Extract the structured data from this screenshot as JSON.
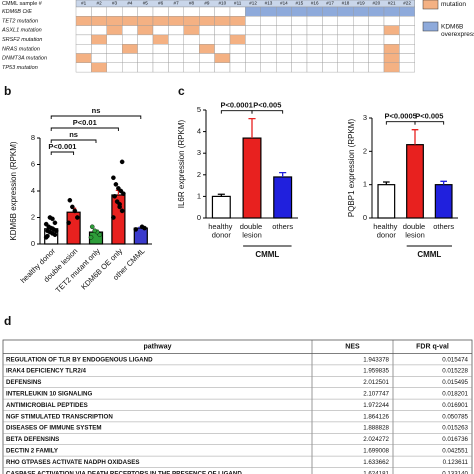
{
  "heatmap": {
    "header_label": "CMML sample #",
    "columns": [
      "#1",
      "#2",
      "#3",
      "#4",
      "#5",
      "#6",
      "#7",
      "#8",
      "#9",
      "#10",
      "#11",
      "#12",
      "#13",
      "#14",
      "#15",
      "#16",
      "#17",
      "#18",
      "#19",
      "#20",
      "#21",
      "#22"
    ],
    "rows": [
      {
        "name": "KDM6B O/E",
        "color": "#8eaadb",
        "cells": [
          0,
          0,
          0,
          0,
          0,
          0,
          0,
          0,
          0,
          0,
          0,
          1,
          1,
          1,
          1,
          1,
          1,
          1,
          1,
          1,
          1,
          1
        ]
      },
      {
        "name": "TET2 mutation",
        "color": "#f4b183",
        "cells": [
          1,
          1,
          1,
          1,
          1,
          1,
          1,
          1,
          1,
          1,
          1,
          0,
          0,
          0,
          0,
          0,
          0,
          0,
          0,
          0,
          0,
          0
        ]
      },
      {
        "name": "ASXL1 mutation",
        "color": "#f4b183",
        "cells": [
          0,
          0,
          1,
          0,
          1,
          0,
          0,
          1,
          0,
          0,
          0,
          0,
          0,
          0,
          0,
          0,
          0,
          0,
          0,
          0,
          1,
          0
        ]
      },
      {
        "name": "SRSF2 mutation",
        "color": "#f4b183",
        "cells": [
          0,
          1,
          0,
          0,
          0,
          1,
          0,
          0,
          0,
          0,
          1,
          0,
          0,
          0,
          0,
          0,
          0,
          0,
          0,
          0,
          0,
          0
        ]
      },
      {
        "name": "NRAS mutation",
        "color": "#f4b183",
        "cells": [
          0,
          0,
          0,
          1,
          0,
          0,
          0,
          0,
          1,
          0,
          0,
          0,
          0,
          0,
          0,
          0,
          0,
          0,
          0,
          0,
          1,
          0
        ]
      },
      {
        "name": "DNMT3A mutation",
        "color": "#f4b183",
        "cells": [
          1,
          0,
          0,
          0,
          0,
          0,
          0,
          0,
          0,
          1,
          0,
          0,
          0,
          0,
          0,
          0,
          0,
          0,
          0,
          0,
          1,
          0
        ]
      },
      {
        "name": "TP53 mutation",
        "color": "#f4b183",
        "cells": [
          0,
          1,
          0,
          0,
          0,
          0,
          0,
          0,
          0,
          0,
          0,
          0,
          0,
          0,
          0,
          0,
          0,
          0,
          0,
          0,
          1,
          0
        ]
      }
    ],
    "legend": [
      {
        "label": "mutation",
        "color": "#f4b183"
      },
      {
        "label": "KDM6B overexpression",
        "color": "#8eaadb"
      }
    ]
  },
  "chart_data": [
    {
      "type": "bar",
      "panel": "b",
      "ylabel": "KDM6B expression (RPKM)",
      "categories": [
        "healthy donor",
        "double lesion",
        "TET2 mutant only",
        "KDM6B OE only",
        "other CMML"
      ],
      "values": [
        1.15,
        2.4,
        0.9,
        3.7,
        1.2
      ],
      "errors": [
        0.12,
        0.3,
        0.15,
        0.35,
        0.05
      ],
      "colors": [
        "#ffffff",
        "#e8211f",
        "#2e9e3a",
        "#e8211f",
        "#3b3bcc"
      ],
      "points": [
        [
          0.5,
          0.7,
          0.8,
          0.9,
          1.0,
          1.0,
          1.1,
          1.2,
          1.3,
          1.5,
          1.6,
          1.9,
          2.0,
          0.6
        ],
        [
          1.6,
          2.0,
          2.5,
          2.8,
          3.3
        ],
        [
          0.5,
          0.7,
          0.9,
          1.0,
          1.3
        ],
        [
          2.0,
          2.5,
          2.8,
          3.2,
          3.6,
          3.8,
          4.0,
          4.2,
          4.5,
          5.0,
          6.2,
          3.0
        ],
        [
          1.1,
          1.2,
          1.3
        ]
      ],
      "ylim": [
        0,
        8
      ],
      "yticks": [
        0,
        2,
        4,
        6,
        8
      ],
      "annotations": [
        {
          "text": "P<0.001",
          "between": [
            "healthy donor",
            "double lesion"
          ]
        },
        {
          "text": "ns",
          "between": [
            "healthy donor",
            "TET2 mutant only"
          ]
        },
        {
          "text": "P<0.01",
          "between": [
            "healthy donor",
            "KDM6B OE only"
          ]
        },
        {
          "text": "ns",
          "between": [
            "healthy donor",
            "other CMML"
          ]
        }
      ]
    },
    {
      "type": "bar",
      "panel": "c",
      "ylabel": "IL6R expression (RPKM)",
      "categories": [
        "healthy donor",
        "double lesion",
        "others"
      ],
      "values": [
        1.0,
        3.7,
        1.9
      ],
      "errors": [
        0.1,
        0.9,
        0.2
      ],
      "colors": [
        "#ffffff",
        "#e8211f",
        "#2020dd"
      ],
      "ylim": [
        0,
        5
      ],
      "yticks": [
        0,
        1,
        2,
        3,
        4,
        5
      ],
      "group_label": "CMML",
      "group": [
        "double lesion",
        "others"
      ],
      "annotations": [
        {
          "text": "P<0.0001",
          "between": [
            "healthy donor",
            "double lesion"
          ]
        },
        {
          "text": "P<0.005",
          "between": [
            "double lesion",
            "others"
          ]
        }
      ]
    },
    {
      "type": "bar",
      "ylabel": "PQBP1 expression (RPKM)",
      "categories": [
        "healthy donor",
        "double lesion",
        "others"
      ],
      "values": [
        1.0,
        2.2,
        1.0
      ],
      "errors": [
        0.08,
        0.45,
        0.1
      ],
      "colors": [
        "#ffffff",
        "#e8211f",
        "#2020dd"
      ],
      "ylim": [
        0,
        3
      ],
      "yticks": [
        0,
        1,
        2,
        3
      ],
      "group_label": "CMML",
      "group": [
        "double lesion",
        "others"
      ],
      "annotations": [
        {
          "text": "P<0.0005",
          "between": [
            "healthy donor",
            "double lesion"
          ]
        },
        {
          "text": "P<0.005",
          "between": [
            "double lesion",
            "others"
          ]
        }
      ]
    }
  ],
  "table": {
    "panel": "d",
    "header": [
      "pathway",
      "NES",
      "FDR q-val"
    ],
    "rows": [
      [
        "REGULATION OF TLR BY ENDOGENOUS LIGAND",
        "1.943378",
        "0.015474"
      ],
      [
        "IRAK4 DEFICIENCY TLR2/4",
        "1.959835",
        "0.015228"
      ],
      [
        "DEFENSINS",
        "2.012501",
        "0.015495"
      ],
      [
        "INTERLEUKIN 10 SIGNALING",
        "2.107747",
        "0.018201"
      ],
      [
        "ANTIMICROBIAL PEPTIDES",
        "1.972244",
        "0.016901"
      ],
      [
        "NGF STIMULATED TRANSCRIPTION",
        "1.864126",
        "0.050785"
      ],
      [
        "DISEASES OF IMMUNE SYSTEM",
        "1.888828",
        "0.015263"
      ],
      [
        "BETA DEFENSINS",
        "2.024272",
        "0.016736"
      ],
      [
        "DECTIN 2 FAMILY",
        "1.699008",
        "0.042551"
      ],
      [
        "RHO GTPASES ACTIVATE NADPH OXIDASES",
        "1.633662",
        "0.123611"
      ],
      [
        "CASPASE ACTIVATION VIA DEATH RECEPTORS IN THE PRESENCE OF LIGAND",
        "1.624181",
        "0.133140"
      ]
    ]
  }
}
